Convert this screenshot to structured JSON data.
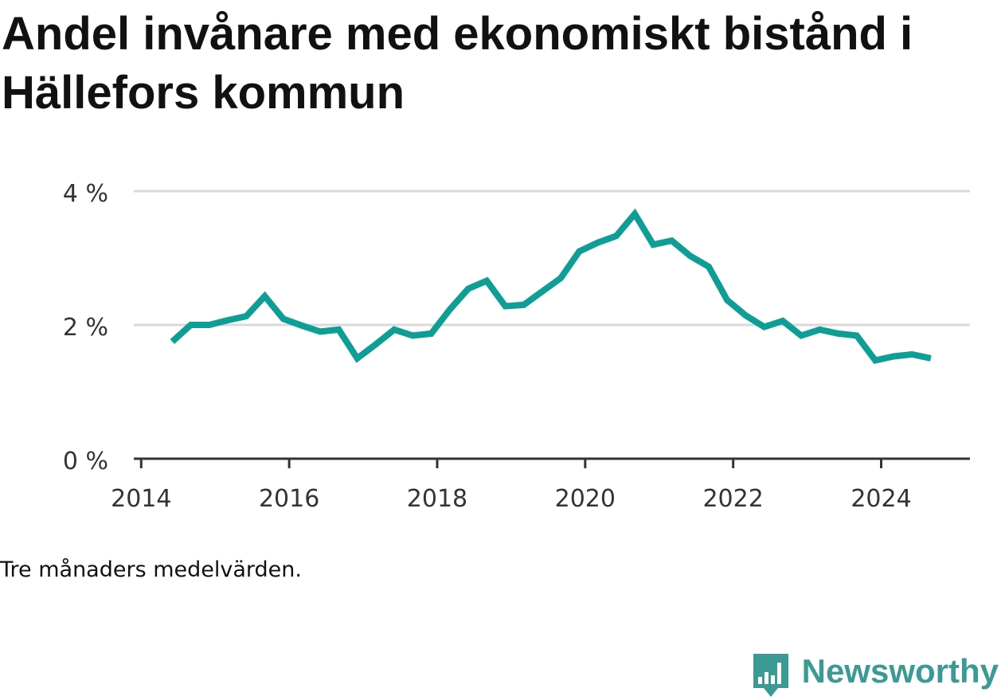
{
  "title": "Andel invånare med ekonomiskt bistånd i Hällefors kommun",
  "note": "Tre månaders medelvärden.",
  "brand": {
    "name": "Newsworthy",
    "logo_icon": "bar-chart-speech-bubble-icon",
    "color": "#3c9a95"
  },
  "colors": {
    "line": "#0e9e96",
    "grid": "#d9d9d9",
    "axis": "#333333",
    "text": "#333333"
  },
  "chart_data": {
    "type": "line",
    "title": "Andel invånare med ekonomiskt bistånd i Hällefors kommun",
    "xlabel": "",
    "ylabel": "",
    "xlim": [
      2013.9,
      2025.2
    ],
    "ylim": [
      0,
      4
    ],
    "grid": true,
    "x_ticks": [
      2014,
      2016,
      2018,
      2020,
      2022,
      2024
    ],
    "x_tick_labels": [
      "2014",
      "2016",
      "2018",
      "2020",
      "2022",
      "2024"
    ],
    "y_ticks": [
      0,
      2,
      4
    ],
    "y_tick_labels": [
      "0 %",
      "2 %",
      "4 %"
    ],
    "series": [
      {
        "x": [
          2014.42,
          2014.67,
          2014.92,
          2015.17,
          2015.42,
          2015.67,
          2015.92,
          2016.17,
          2016.42,
          2016.67,
          2016.92,
          2017.17,
          2017.42,
          2017.67,
          2017.92,
          2018.17,
          2018.42,
          2018.67,
          2018.92,
          2019.17,
          2019.42,
          2019.67,
          2019.92,
          2020.17,
          2020.42,
          2020.67,
          2020.92,
          2021.17,
          2021.42,
          2021.67,
          2021.92,
          2022.17,
          2022.42,
          2022.67,
          2022.92,
          2023.17,
          2023.42,
          2023.67,
          2023.92,
          2024.17,
          2024.42,
          2024.67
        ],
        "values": [
          1.75,
          2.0,
          2.0,
          2.07,
          2.13,
          2.43,
          2.09,
          1.99,
          1.9,
          1.93,
          1.5,
          1.71,
          1.93,
          1.84,
          1.87,
          2.23,
          2.54,
          2.66,
          2.28,
          2.3,
          2.5,
          2.7,
          3.1,
          3.23,
          3.33,
          3.66,
          3.2,
          3.26,
          3.03,
          2.87,
          2.37,
          2.14,
          1.97,
          2.06,
          1.84,
          1.93,
          1.87,
          1.84,
          1.47,
          1.53,
          1.56,
          1.5
        ]
      }
    ]
  }
}
